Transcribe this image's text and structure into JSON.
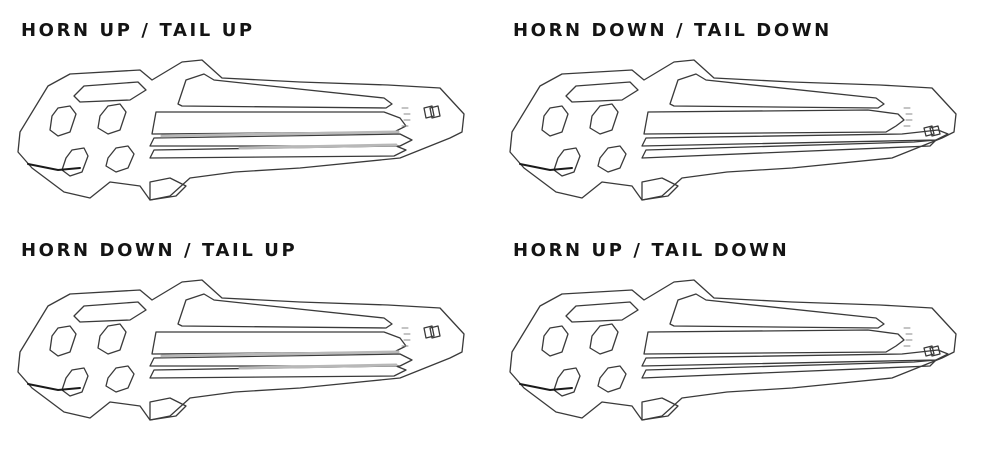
{
  "panels": [
    {
      "title": "HORN UP / TAIL UP",
      "horn": "up",
      "tail": "up"
    },
    {
      "title": "HORN DOWN / TAIL DOWN",
      "horn": "down",
      "tail": "down"
    },
    {
      "title": "HORN DOWN / TAIL UP",
      "horn": "down",
      "tail": "up"
    },
    {
      "title": "HORN UP / TAIL DOWN",
      "horn": "up",
      "tail": "down"
    }
  ]
}
